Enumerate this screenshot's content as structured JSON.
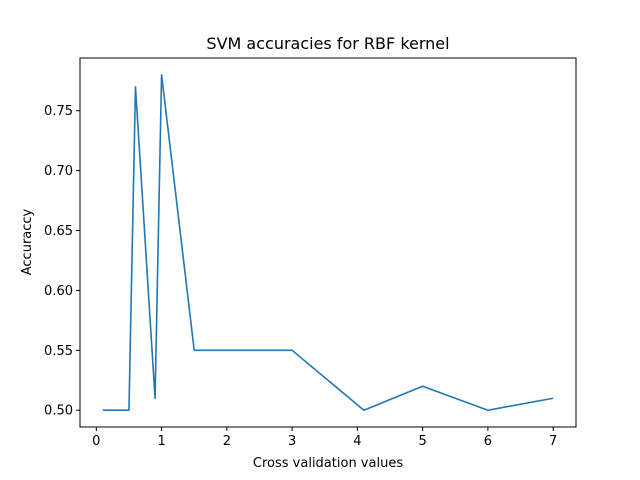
{
  "chart_data": {
    "type": "line",
    "title": "SVM accuracies for RBF kernel",
    "xlabel": "Cross validation values",
    "ylabel": "Accuraccy",
    "xlim": [
      -0.25,
      7.35
    ],
    "ylim": [
      0.486,
      0.794
    ],
    "xticks": [
      0,
      1,
      2,
      3,
      4,
      5,
      6,
      7
    ],
    "xtick_labels": [
      "0",
      "1",
      "2",
      "3",
      "4",
      "5",
      "6",
      "7"
    ],
    "yticks": [
      0.5,
      0.55,
      0.6,
      0.65,
      0.7,
      0.75
    ],
    "ytick_labels": [
      "0.50",
      "0.55",
      "0.60",
      "0.65",
      "0.70",
      "0.75"
    ],
    "grid": false,
    "series": [
      {
        "color": "#1f77b4",
        "x": [
          0.1,
          0.5,
          0.6,
          0.9,
          1.0,
          1.5,
          2.0,
          2.5,
          3.0,
          4.1,
          5.0,
          6.0,
          7.0
        ],
        "y": [
          0.5,
          0.5,
          0.77,
          0.51,
          0.78,
          0.55,
          0.55,
          0.55,
          0.55,
          0.5,
          0.52,
          0.5,
          0.51
        ]
      }
    ]
  }
}
